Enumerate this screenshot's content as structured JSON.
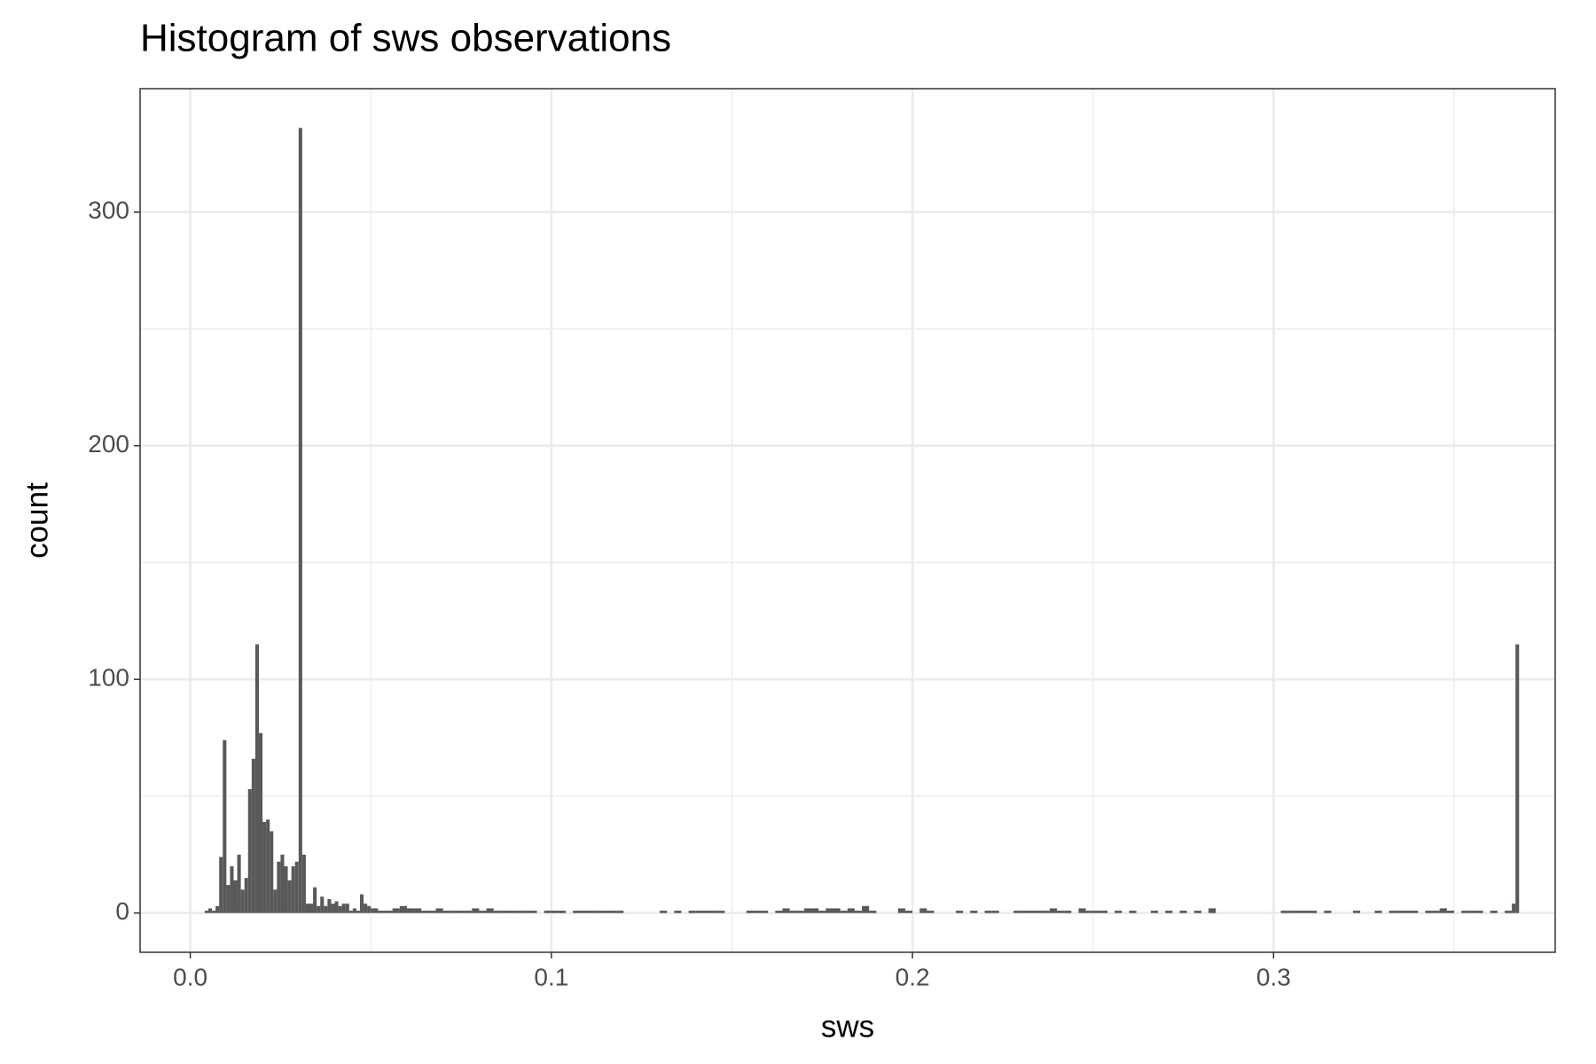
{
  "chart_data": {
    "type": "histogram",
    "title": "Histogram of sws observations",
    "x_label": "sws",
    "y_label": "count",
    "bins": [
      0.004,
      0.005,
      0.006,
      0.007,
      0.008,
      0.009,
      0.01,
      0.011,
      0.012,
      0.013,
      0.014,
      0.015,
      0.016,
      0.017,
      0.018,
      0.019,
      0.02,
      0.021,
      0.022,
      0.023,
      0.024,
      0.025,
      0.026,
      0.027,
      0.028,
      0.029,
      0.03,
      0.031,
      0.032,
      0.033,
      0.034,
      0.035,
      0.036,
      0.037,
      0.038,
      0.039,
      0.04,
      0.041,
      0.042,
      0.043,
      0.044,
      0.045,
      0.046,
      0.047,
      0.048,
      0.049,
      0.05,
      0.052,
      0.054,
      0.056,
      0.058,
      0.06,
      0.062,
      0.064,
      0.066,
      0.068,
      0.07,
      0.072,
      0.074,
      0.076,
      0.078,
      0.08,
      0.082,
      0.084,
      0.086,
      0.088,
      0.09,
      0.092,
      0.094,
      0.096,
      0.098,
      0.1,
      0.102,
      0.104,
      0.106,
      0.108,
      0.11,
      0.112,
      0.114,
      0.116,
      0.118,
      0.12,
      0.122,
      0.124,
      0.126,
      0.128,
      0.13,
      0.132,
      0.134,
      0.136,
      0.138,
      0.14,
      0.142,
      0.144,
      0.146,
      0.148,
      0.15,
      0.152,
      0.154,
      0.156,
      0.158,
      0.16,
      0.162,
      0.164,
      0.166,
      0.168,
      0.17,
      0.172,
      0.174,
      0.176,
      0.178,
      0.18,
      0.182,
      0.184,
      0.186,
      0.188,
      0.19,
      0.192,
      0.194,
      0.196,
      0.198,
      0.2,
      0.202,
      0.204,
      0.206,
      0.208,
      0.21,
      0.212,
      0.214,
      0.216,
      0.218,
      0.22,
      0.222,
      0.224,
      0.226,
      0.228,
      0.23,
      0.232,
      0.234,
      0.236,
      0.238,
      0.24,
      0.242,
      0.244,
      0.246,
      0.248,
      0.25,
      0.252,
      0.254,
      0.256,
      0.258,
      0.26,
      0.262,
      0.264,
      0.266,
      0.268,
      0.27,
      0.272,
      0.274,
      0.276,
      0.278,
      0.28,
      0.282,
      0.284,
      0.286,
      0.288,
      0.29,
      0.292,
      0.294,
      0.296,
      0.298,
      0.3,
      0.302,
      0.304,
      0.306,
      0.308,
      0.31,
      0.312,
      0.314,
      0.316,
      0.318,
      0.32,
      0.322,
      0.324,
      0.326,
      0.328,
      0.33,
      0.332,
      0.334,
      0.336,
      0.338,
      0.34,
      0.342,
      0.344,
      0.346,
      0.348,
      0.35,
      0.352,
      0.354,
      0.356,
      0.358,
      0.36,
      0.362,
      0.364,
      0.366,
      0.367,
      0.368
    ],
    "counts": [
      1,
      2,
      1,
      3,
      24,
      74,
      12,
      20,
      14,
      25,
      10,
      15,
      53,
      66,
      115,
      77,
      39,
      40,
      35,
      10,
      22,
      25,
      20,
      14,
      20,
      22,
      336,
      25,
      4,
      4,
      11,
      3,
      7,
      3,
      6,
      4,
      5,
      3,
      4,
      4,
      1,
      2,
      1,
      8,
      4,
      3,
      2,
      1,
      1,
      2,
      3,
      2,
      2,
      1,
      1,
      2,
      1,
      1,
      1,
      1,
      2,
      1,
      2,
      1,
      1,
      1,
      1,
      1,
      1,
      0,
      1,
      1,
      1,
      0,
      1,
      1,
      1,
      1,
      1,
      1,
      1,
      0,
      0,
      0,
      0,
      0,
      1,
      0,
      1,
      0,
      1,
      1,
      1,
      1,
      1,
      0,
      0,
      0,
      1,
      1,
      1,
      0,
      1,
      2,
      1,
      1,
      2,
      2,
      1,
      2,
      2,
      1,
      2,
      1,
      3,
      1,
      0,
      0,
      0,
      2,
      1,
      0,
      2,
      1,
      0,
      0,
      0,
      1,
      0,
      1,
      0,
      1,
      1,
      0,
      0,
      1,
      1,
      1,
      1,
      1,
      2,
      1,
      1,
      0,
      2,
      1,
      1,
      1,
      0,
      1,
      0,
      1,
      0,
      0,
      1,
      0,
      1,
      0,
      1,
      0,
      1,
      0,
      2,
      0,
      0,
      0,
      0,
      0,
      0,
      0,
      0,
      0,
      1,
      1,
      1,
      1,
      1,
      0,
      1,
      0,
      0,
      0,
      1,
      0,
      0,
      1,
      0,
      1,
      1,
      1,
      1,
      0,
      1,
      1,
      2,
      1,
      0,
      1,
      1,
      1,
      0,
      1,
      0,
      1,
      4,
      115
    ],
    "color": "#595959",
    "xlim": [
      -0.0139,
      0.378
    ],
    "ylim": [
      -16.8,
      352.8
    ],
    "xticks": [
      {
        "value": 0,
        "label": "0.0"
      },
      0.1,
      0.2,
      0.3
    ],
    "yticks": [
      0,
      100,
      200,
      300
    ],
    "xminor_ticks": [
      0.05,
      0.15,
      0.25,
      0.35
    ],
    "yminor_ticks": [
      50,
      150,
      250
    ],
    "grid": true
  }
}
